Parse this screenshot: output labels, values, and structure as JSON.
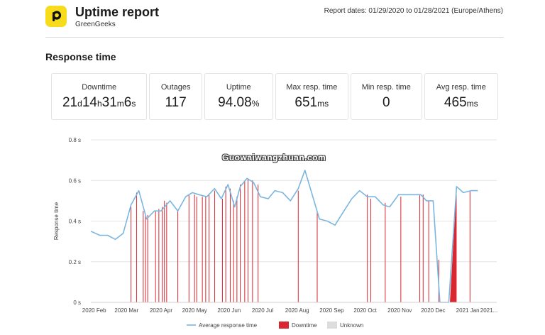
{
  "header": {
    "title": "Uptime report",
    "subtitle": "GreenGeeks",
    "report_dates": "Report dates: 01/29/2020 to 01/28/2021 (Europe/Athens)",
    "logo_icon": "letter-p-logo-icon",
    "logo_color": "#f7dc1b"
  },
  "section": {
    "title": "Response time"
  },
  "stats": {
    "downtime": {
      "label": "Downtime",
      "d": "21",
      "d_u": "d",
      "h": "14",
      "h_u": "h",
      "m": "31",
      "m_u": "m",
      "s": "6",
      "s_u": "s"
    },
    "outages": {
      "label": "Outages",
      "value": "117"
    },
    "uptime": {
      "label": "Uptime",
      "value": "94.08",
      "unit": "%"
    },
    "max_resp": {
      "label": "Max resp. time",
      "value": "651",
      "unit": "ms"
    },
    "min_resp": {
      "label": "Min resp. time",
      "value": "0"
    },
    "avg_resp": {
      "label": "Avg resp. time",
      "value": "465",
      "unit": "ms"
    }
  },
  "watermark": "Guowaiwangzhuan.com",
  "chart_data": {
    "type": "line",
    "ylabel": "Response time",
    "ylim": [
      0,
      0.8
    ],
    "y_ticks": [
      "0 s",
      "0.2 s",
      "0.4 s",
      "0.6 s",
      "0.8 s"
    ],
    "grid": true,
    "x_range_days": [
      0,
      364
    ],
    "x_ticks": [
      {
        "day": 3,
        "label": "2020 Feb"
      },
      {
        "day": 32,
        "label": "2020 Mar"
      },
      {
        "day": 63,
        "label": "2020 Apr"
      },
      {
        "day": 93,
        "label": "2020 May"
      },
      {
        "day": 124,
        "label": "2020 Jun"
      },
      {
        "day": 154,
        "label": "2020 Jul"
      },
      {
        "day": 185,
        "label": "2020 Aug"
      },
      {
        "day": 216,
        "label": "2020 Sep"
      },
      {
        "day": 246,
        "label": "2020 Oct"
      },
      {
        "day": 277,
        "label": "2020 Nov"
      },
      {
        "day": 307,
        "label": "2020 Dec"
      },
      {
        "day": 338,
        "label": "2021 Jan"
      },
      {
        "day": 357,
        "label": "2021..."
      }
    ],
    "series": [
      {
        "name": "Average response time",
        "color": "#7ab6e0",
        "points": [
          [
            0,
            0.35
          ],
          [
            8,
            0.33
          ],
          [
            15,
            0.33
          ],
          [
            22,
            0.31
          ],
          [
            29,
            0.34
          ],
          [
            36,
            0.48
          ],
          [
            43,
            0.55
          ],
          [
            50,
            0.41
          ],
          [
            57,
            0.45
          ],
          [
            63,
            0.45
          ],
          [
            71,
            0.5
          ],
          [
            78,
            0.45
          ],
          [
            85,
            0.52
          ],
          [
            91,
            0.54
          ],
          [
            97,
            0.53
          ],
          [
            104,
            0.52
          ],
          [
            111,
            0.56
          ],
          [
            117,
            0.51
          ],
          [
            123,
            0.58
          ],
          [
            129,
            0.47
          ],
          [
            134,
            0.57
          ],
          [
            140,
            0.61
          ],
          [
            146,
            0.59
          ],
          [
            152,
            0.52
          ],
          [
            159,
            0.51
          ],
          [
            165,
            0.55
          ],
          [
            172,
            0.54
          ],
          [
            179,
            0.5
          ],
          [
            186,
            0.56
          ],
          [
            192,
            0.65
          ],
          [
            198,
            0.54
          ],
          [
            205,
            0.41
          ],
          [
            212,
            0.4
          ],
          [
            219,
            0.38
          ],
          [
            227,
            0.45
          ],
          [
            234,
            0.51
          ],
          [
            241,
            0.55
          ],
          [
            248,
            0.52
          ],
          [
            255,
            0.52
          ],
          [
            262,
            0.48
          ],
          [
            268,
            0.47
          ],
          [
            276,
            0.53
          ],
          [
            283,
            0.53
          ],
          [
            289,
            0.53
          ],
          [
            296,
            0.53
          ],
          [
            301,
            0.5
          ],
          [
            307,
            0.5
          ],
          [
            313,
            0.0
          ],
          [
            321,
            0.0
          ],
          [
            328,
            0.57
          ],
          [
            334,
            0.54
          ],
          [
            341,
            0.55
          ],
          [
            347,
            0.55
          ]
        ]
      }
    ],
    "downtime": {
      "name": "Downtime",
      "color": "#d9262f",
      "spikes": [
        [
          36,
          0.47
        ],
        [
          41,
          0.54
        ],
        [
          47,
          0.45
        ],
        [
          49,
          0.43
        ],
        [
          51,
          0.43
        ],
        [
          58,
          0.45
        ],
        [
          61,
          0.46
        ],
        [
          64,
          0.47
        ],
        [
          66,
          0.5
        ],
        [
          68,
          0.49
        ],
        [
          78,
          0.45
        ],
        [
          88,
          0.53
        ],
        [
          93,
          0.53
        ],
        [
          95,
          0.52
        ],
        [
          100,
          0.52
        ],
        [
          103,
          0.52
        ],
        [
          106,
          0.53
        ],
        [
          111,
          0.55
        ],
        [
          118,
          0.51
        ],
        [
          121,
          0.57
        ],
        [
          125,
          0.56
        ],
        [
          128,
          0.5
        ],
        [
          131,
          0.52
        ],
        [
          134,
          0.58
        ],
        [
          138,
          0.6
        ],
        [
          141,
          0.61
        ],
        [
          145,
          0.6
        ],
        [
          150,
          0.58
        ],
        [
          186,
          0.55
        ],
        [
          203,
          0.45
        ],
        [
          248,
          0.53
        ],
        [
          251,
          0.51
        ],
        [
          264,
          0.49
        ],
        [
          278,
          0.52
        ],
        [
          295,
          0.53
        ],
        [
          298,
          0.53
        ],
        [
          303,
          0.5
        ],
        [
          312,
          0.21
        ],
        [
          340,
          0.55
        ]
      ],
      "blocks": [
        [
          322,
          328
        ]
      ]
    },
    "unknown": {
      "name": "Unknown",
      "color": "#dddddd"
    }
  }
}
